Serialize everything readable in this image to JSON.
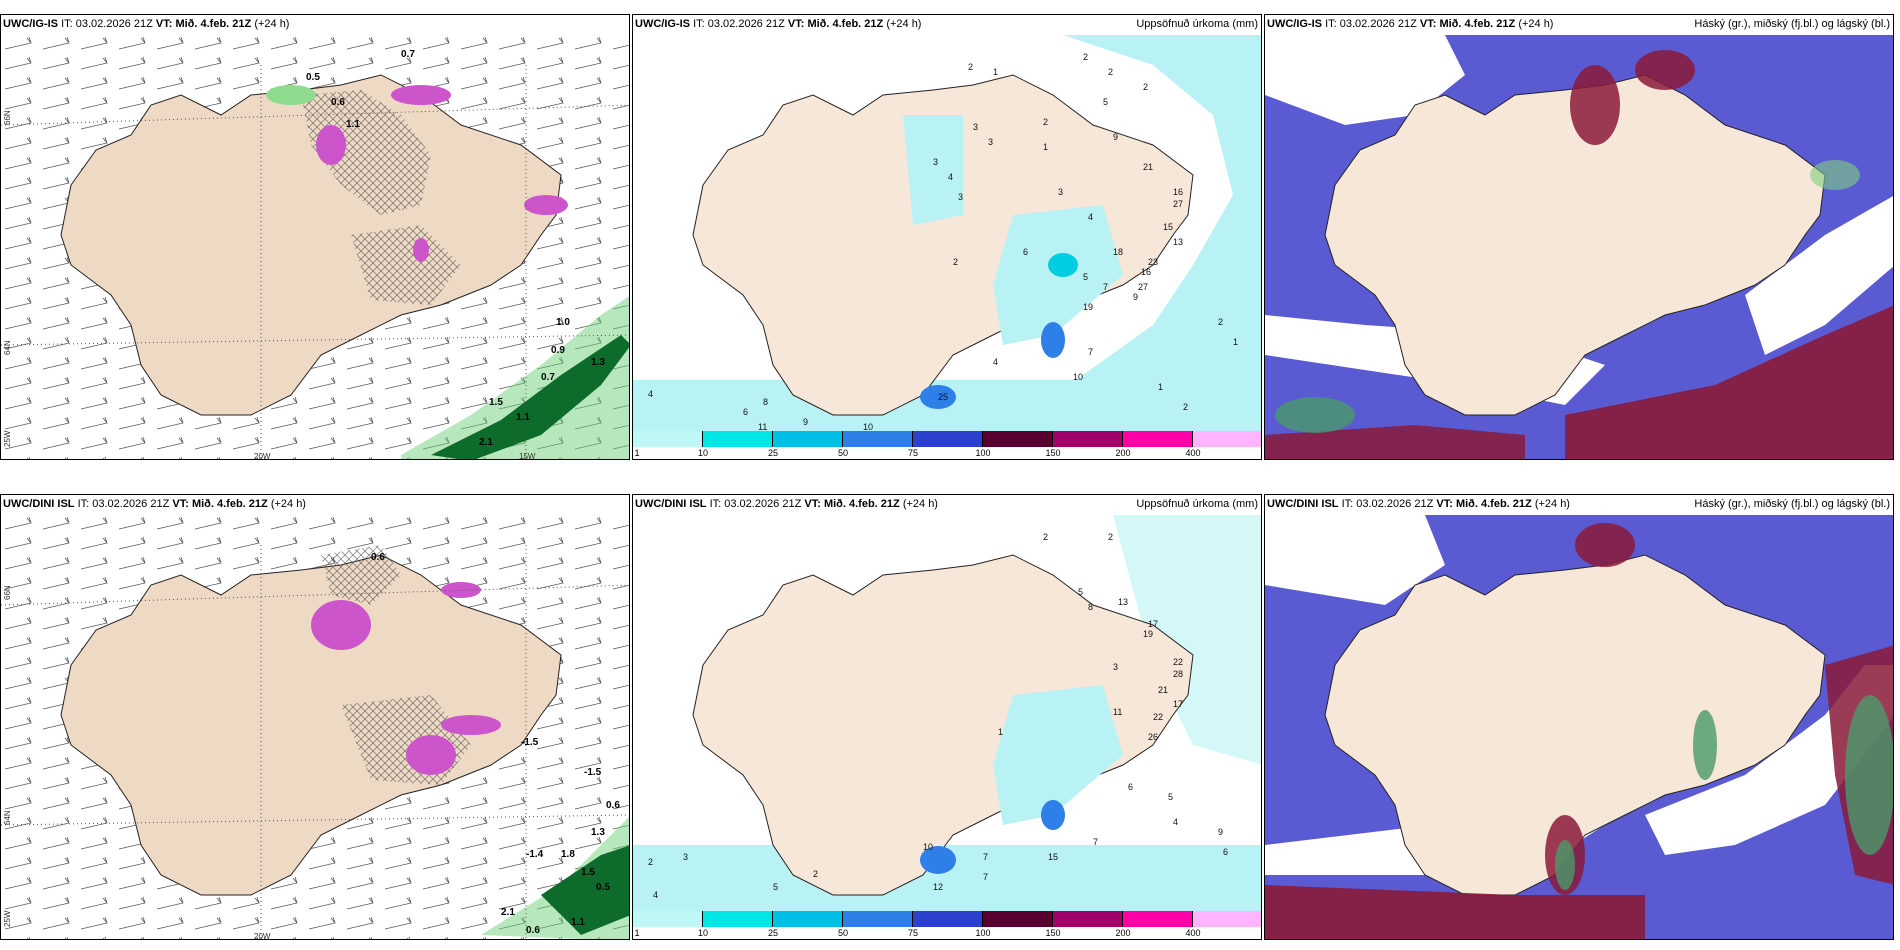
{
  "panels": {
    "top_left": {
      "model": "UWC/IG-IS",
      "it_label": "IT:",
      "it": "03.02.2026 21Z",
      "vt_label": "VT:",
      "vt": "Mið. 4.feb. 21Z",
      "lead": "(+24 h)"
    },
    "top_mid": {
      "model": "UWC/IG-IS",
      "it_label": "IT:",
      "it": "03.02.2026 21Z",
      "vt_label": "VT:",
      "vt": "Mið. 4.feb. 21Z",
      "lead": "(+24 h)",
      "right_title": "Uppsöfnuð úrkoma (mm)"
    },
    "top_right": {
      "model": "UWC/IG-IS",
      "it_label": "IT:",
      "it": "03.02.2026 21Z",
      "vt_label": "VT:",
      "vt": "Mið. 4.feb. 21Z",
      "lead": "(+24 h)",
      "right_title": "Háský (gr.), miðský (fj.bl.) og lágský (bl.)"
    },
    "bot_left": {
      "model": "UWC/DINI ISL",
      "it_label": "IT:",
      "it": "03.02.2026 21Z",
      "vt_label": "VT:",
      "vt": "Mið. 4.feb. 21Z",
      "lead": "(+24 h)"
    },
    "bot_mid": {
      "model": "UWC/DINI ISL",
      "it_label": "IT:",
      "it": "03.02.2026 21Z",
      "vt_label": "VT:",
      "vt": "Mið. 4.feb. 21Z",
      "lead": "(+24 h)",
      "right_title": "Uppsöfnuð úrkoma (mm)"
    },
    "bot_right": {
      "model": "UWC/DINI ISL",
      "it_label": "IT:",
      "it": "03.02.2026 21Z",
      "vt_label": "VT:",
      "vt": "Mið. 4.feb. 21Z",
      "lead": "(+24 h)",
      "right_title": "Háský (gr.), miðský (fj.bl.) og lágský (bl.)"
    }
  },
  "axis_labels": {
    "lon_20": "20W",
    "lon_15": "15W",
    "lon_25": "25W",
    "lat_66": "66N",
    "lat_64": "64N",
    "lat_65": "65N"
  },
  "colorbar": {
    "labels": [
      "1",
      "10",
      "25",
      "50",
      "75",
      "100",
      "150",
      "200",
      "400"
    ],
    "colors": [
      "#bff6f6",
      "#00e5e5",
      "#00bfe6",
      "#2e7fe8",
      "#2c3fcf",
      "#5a0030",
      "#a0006a",
      "#ff00a8",
      "#ffb4ff"
    ]
  },
  "colors": {
    "land": "#f7e7d8",
    "precip_light": "#b8f2f4",
    "precip_mid": "#00cde0",
    "cloud_blue": "#5a5ad2",
    "cloud_red": "#8a1a3a",
    "green": "#7fcf7f"
  },
  "precip_values_top": [
    "2",
    "1",
    "2",
    "3",
    "3",
    "5",
    "2",
    "4",
    "3",
    "3",
    "2",
    "2",
    "1",
    "3",
    "4",
    "9",
    "21",
    "16",
    "27",
    "15",
    "13",
    "16",
    "23",
    "7",
    "5",
    "9",
    "6",
    "18",
    "27",
    "19",
    "25",
    "10",
    "7",
    "8",
    "4",
    "9",
    "11",
    "10",
    "6",
    "2",
    "2",
    "1",
    "1",
    "2",
    "4"
  ],
  "precip_values_bot": [
    "2",
    "2",
    "5",
    "8",
    "13",
    "17",
    "19",
    "22",
    "28",
    "21",
    "17",
    "22",
    "26",
    "11",
    "15",
    "7",
    "7",
    "6",
    "5",
    "4",
    "9",
    "6",
    "12",
    "10",
    "7",
    "5",
    "2",
    "3",
    "2",
    "4",
    "1",
    "3"
  ],
  "wind_labels_top": [
    "0.5",
    "0.7",
    "0.6",
    "1.1",
    "1.0",
    "0.9",
    "0.7",
    "1.5",
    "2.1",
    "1.1",
    "1.3"
  ],
  "wind_labels_bot": [
    "0.6",
    "-1.5",
    "-1.5",
    "0.6",
    "1.3",
    "-1.4",
    "1.8",
    "1.5",
    "0.5",
    "2.1",
    "1.1",
    "0.6"
  ]
}
